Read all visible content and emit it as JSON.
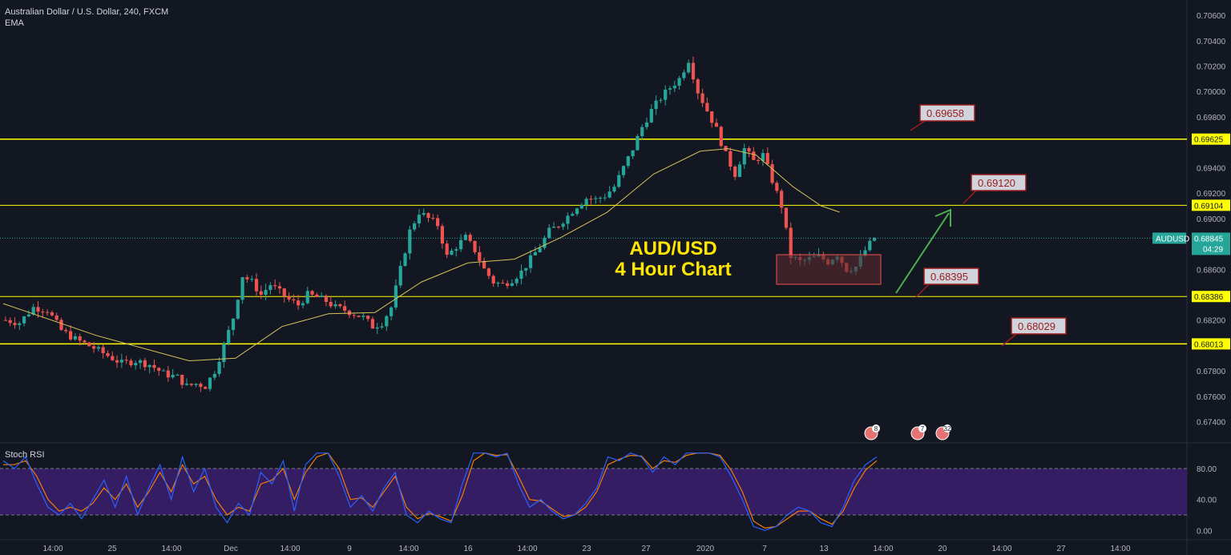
{
  "header": {
    "symbol_line": "Australian Dollar / U.S. Dollar, 240, FXCM",
    "indicator": "EMA"
  },
  "title": {
    "line1": "AUD/USD",
    "line2": "4 Hour Chart"
  },
  "colors": {
    "background": "#131722",
    "up_candle": "#26a69a",
    "down_candle": "#ef5350",
    "level_line": "#ffff00",
    "ema_line": "#d6c25a",
    "stoch_k": "#2962ff",
    "stoch_d": "#f57c00",
    "stoch_band": "#3b1f6e",
    "arrow": "#4caf50",
    "box": "#5c2a2f",
    "price_tag": "#26a69a"
  },
  "chart_data": {
    "type": "candlestick",
    "symbol": "AUDUSD",
    "timeframe": "240",
    "last_price": "0.68845",
    "countdown": "04:29",
    "y_ticks": [
      "0.70600",
      "0.70400",
      "0.70200",
      "0.70000",
      "0.69800",
      "0.69400",
      "0.69200",
      "0.69000",
      "0.68600",
      "0.68200",
      "0.67800",
      "0.67600",
      "0.67400"
    ],
    "ylim": [
      0.6724,
      0.7072
    ],
    "x_ticks": [
      "14:00",
      "25",
      "14:00",
      "Dec",
      "14:00",
      "9",
      "14:00",
      "16",
      "14:00",
      "23",
      "27",
      "2020",
      "7",
      "13",
      "14:00",
      "20",
      "14:00",
      "27",
      "14:00"
    ],
    "levels": [
      {
        "label": "0.69625",
        "value": 0.69625,
        "width": 1.5
      },
      {
        "label": "0.69104",
        "value": 0.69104,
        "width": 1
      },
      {
        "label": "0.68386",
        "value": 0.68386,
        "width": 1
      },
      {
        "label": "0.68013",
        "value": 0.68013,
        "width": 1.5
      }
    ],
    "annotations": [
      "0.69658",
      "0.69120",
      "0.68395",
      "0.68029"
    ],
    "event_badges": [
      "8",
      "7",
      "32"
    ],
    "candles_close_path": [
      [
        0,
        0.682
      ],
      [
        3,
        0.6818
      ],
      [
        6,
        0.683
      ],
      [
        9,
        0.6828
      ],
      [
        12,
        0.6812
      ],
      [
        15,
        0.6805
      ],
      [
        19,
        0.6798
      ],
      [
        22,
        0.6792
      ],
      [
        25,
        0.6786
      ],
      [
        28,
        0.6788
      ],
      [
        31,
        0.6785
      ],
      [
        34,
        0.6778
      ],
      [
        37,
        0.6775
      ],
      [
        39,
        0.6768
      ],
      [
        41,
        0.677
      ],
      [
        43,
        0.6768
      ],
      [
        45,
        0.678
      ],
      [
        47,
        0.68
      ],
      [
        49,
        0.6822
      ],
      [
        51,
        0.6855
      ],
      [
        53,
        0.685
      ],
      [
        55,
        0.684
      ],
      [
        57,
        0.6848
      ],
      [
        59,
        0.6842
      ],
      [
        61,
        0.6836
      ],
      [
        63,
        0.6832
      ],
      [
        65,
        0.684
      ],
      [
        67,
        0.6838
      ],
      [
        69,
        0.6835
      ],
      [
        71,
        0.683
      ],
      [
        73,
        0.6828
      ],
      [
        75,
        0.6825
      ],
      [
        77,
        0.6822
      ],
      [
        79,
        0.6815
      ],
      [
        81,
        0.6818
      ],
      [
        83,
        0.683
      ],
      [
        85,
        0.686
      ],
      [
        87,
        0.689
      ],
      [
        89,
        0.6905
      ],
      [
        91,
        0.69
      ],
      [
        93,
        0.6895
      ],
      [
        95,
        0.687
      ],
      [
        97,
        0.6878
      ],
      [
        99,
        0.6885
      ],
      [
        101,
        0.6875
      ],
      [
        103,
        0.686
      ],
      [
        105,
        0.685
      ],
      [
        107,
        0.6848
      ],
      [
        109,
        0.6852
      ],
      [
        111,
        0.6858
      ],
      [
        113,
        0.6868
      ],
      [
        115,
        0.6878
      ],
      [
        117,
        0.689
      ],
      [
        119,
        0.6895
      ],
      [
        121,
        0.6902
      ],
      [
        123,
        0.691
      ],
      [
        125,
        0.6916
      ],
      [
        127,
        0.6915
      ],
      [
        129,
        0.6918
      ],
      [
        131,
        0.6925
      ],
      [
        133,
        0.694
      ],
      [
        135,
        0.6955
      ],
      [
        137,
        0.6972
      ],
      [
        139,
        0.6985
      ],
      [
        141,
        0.6995
      ],
      [
        143,
        0.7003
      ],
      [
        145,
        0.701
      ],
      [
        147,
        0.7025
      ],
      [
        149,
        0.7
      ],
      [
        151,
        0.6985
      ],
      [
        153,
        0.697
      ],
      [
        155,
        0.695
      ],
      [
        157,
        0.6935
      ],
      [
        159,
        0.6955
      ],
      [
        161,
        0.6945
      ],
      [
        163,
        0.695
      ],
      [
        165,
        0.693
      ],
      [
        167,
        0.691
      ],
      [
        169,
        0.687
      ],
      [
        171,
        0.6866
      ],
      [
        173,
        0.6868
      ],
      [
        175,
        0.687
      ],
      [
        177,
        0.6866
      ],
      [
        179,
        0.6872
      ],
      [
        181,
        0.686
      ],
      [
        183,
        0.6862
      ],
      [
        185,
        0.6875
      ],
      [
        187,
        0.6885
      ]
    ],
    "ema_path": [
      [
        0,
        0.6833
      ],
      [
        20,
        0.6808
      ],
      [
        40,
        0.6788
      ],
      [
        50,
        0.679
      ],
      [
        60,
        0.6815
      ],
      [
        70,
        0.6825
      ],
      [
        80,
        0.6826
      ],
      [
        90,
        0.685
      ],
      [
        100,
        0.6865
      ],
      [
        110,
        0.6868
      ],
      [
        120,
        0.6885
      ],
      [
        130,
        0.6905
      ],
      [
        140,
        0.6935
      ],
      [
        150,
        0.6953
      ],
      [
        156,
        0.6955
      ],
      [
        162,
        0.695
      ],
      [
        170,
        0.6925
      ],
      [
        176,
        0.691
      ],
      [
        180,
        0.6905
      ]
    ],
    "stoch_ticks": [
      "80.00",
      "40.00",
      "0.00"
    ],
    "stoch_ylim": [
      -10,
      110
    ],
    "stoch_k": [
      90,
      80,
      95,
      60,
      30,
      20,
      35,
      15,
      40,
      65,
      30,
      70,
      20,
      55,
      85,
      40,
      95,
      50,
      80,
      30,
      10,
      35,
      20,
      75,
      60,
      90,
      25,
      85,
      100,
      100,
      70,
      30,
      45,
      25,
      55,
      75,
      20,
      10,
      25,
      15,
      10,
      60,
      100,
      100,
      95,
      100,
      60,
      30,
      40,
      25,
      15,
      20,
      35,
      55,
      95,
      90,
      100,
      95,
      75,
      95,
      85,
      100,
      100,
      100,
      95,
      70,
      40,
      5,
      0,
      5,
      20,
      30,
      25,
      10,
      5,
      30,
      65,
      85,
      95
    ],
    "stoch_d": [
      85,
      85,
      90,
      70,
      40,
      25,
      30,
      25,
      35,
      55,
      40,
      60,
      30,
      50,
      75,
      50,
      85,
      60,
      70,
      40,
      20,
      30,
      25,
      60,
      65,
      80,
      40,
      75,
      95,
      100,
      80,
      40,
      42,
      30,
      50,
      70,
      30,
      15,
      22,
      18,
      12,
      45,
      90,
      100,
      97,
      98,
      70,
      40,
      38,
      28,
      18,
      20,
      30,
      50,
      85,
      92,
      97,
      96,
      80,
      90,
      88,
      97,
      100,
      100,
      97,
      78,
      50,
      12,
      3,
      5,
      15,
      25,
      25,
      15,
      8,
      25,
      55,
      78,
      90
    ]
  }
}
